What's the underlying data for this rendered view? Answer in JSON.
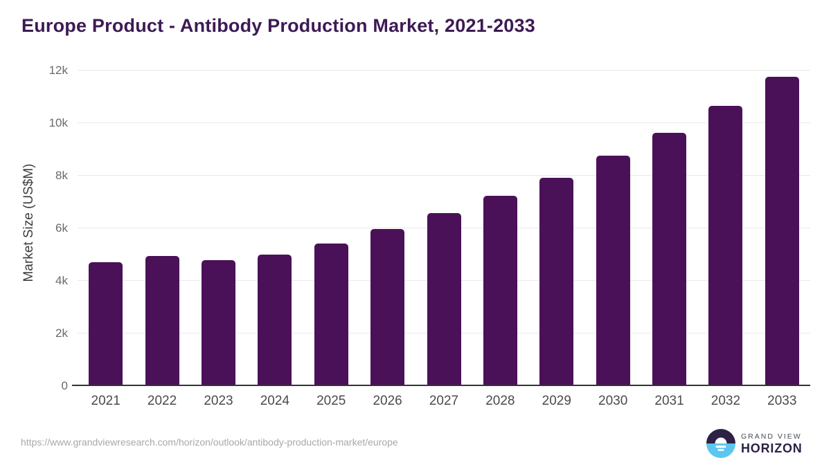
{
  "title": "Europe Product - Antibody Production Market, 2021-2033",
  "y_axis_title": "Market Size (US$M)",
  "footer": {
    "source_url": "https://www.grandviewresearch.com/horizon/outlook/antibody-production-market/europe",
    "logo": {
      "line1": "GRAND VIEW",
      "line2": "HORIZON"
    }
  },
  "colors": {
    "bar": "#4a1158",
    "title": "#3d1a54",
    "gridline": "#e9e9e9",
    "axis_line": "#333333",
    "y_tick_label": "#666a6e",
    "x_tick_label": "#4a4a4a",
    "url_text": "#a8a8a8",
    "logo_dark": "#2d2145",
    "logo_blue": "#5bc7f0"
  },
  "chart_data": {
    "type": "bar",
    "title": "Europe Product - Antibody Production Market, 2021-2033",
    "categories": [
      "2021",
      "2022",
      "2023",
      "2024",
      "2025",
      "2026",
      "2027",
      "2028",
      "2029",
      "2030",
      "2031",
      "2032",
      "2033"
    ],
    "values": [
      4685,
      4920,
      4765,
      4975,
      5405,
      5950,
      6555,
      7210,
      7895,
      8740,
      9605,
      10630,
      11735
    ],
    "xlabel": "",
    "ylabel": "Market Size (US$M)",
    "ylim": [
      0,
      12000
    ],
    "yticks": [
      0,
      2000,
      4000,
      6000,
      8000,
      10000,
      12000
    ],
    "ytick_labels": [
      "0",
      "2k",
      "4k",
      "6k",
      "8k",
      "10k",
      "12k"
    ],
    "grid": "horizontal-only",
    "legend": "none",
    "bar_color": "#4a1158"
  }
}
